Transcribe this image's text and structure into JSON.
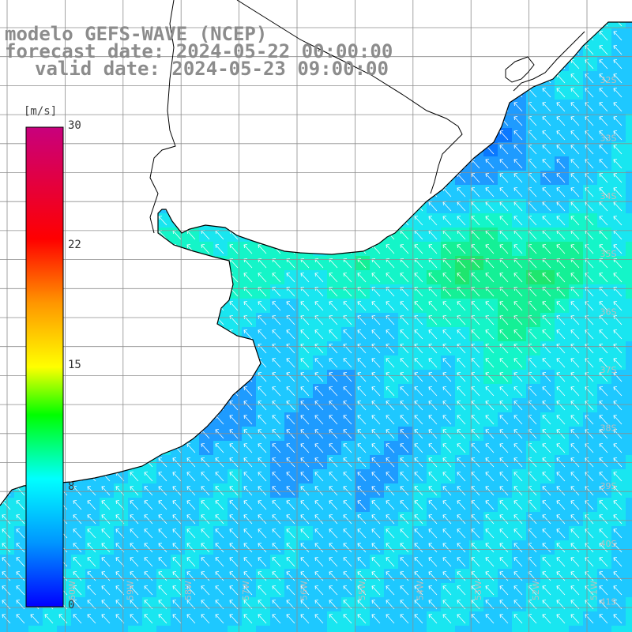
{
  "title": {
    "line1": "modelo GEFS-WAVE (NCEP)",
    "line2": "forecast date: 2024-05-22 00:00:00",
    "line3": "valid date: 2024-05-23 09:00:00"
  },
  "colorbar": {
    "units": "[m/s]",
    "ticks": [
      {
        "value": 30,
        "label": "30"
      },
      {
        "value": 22,
        "label": "22"
      },
      {
        "value": 15,
        "label": "15"
      },
      {
        "value": 8,
        "label": "8"
      },
      {
        "value": 0,
        "label": "0"
      }
    ],
    "stops": [
      {
        "value": 0,
        "color": "#0000ff"
      },
      {
        "value": 4,
        "color": "#0096ff"
      },
      {
        "value": 8,
        "color": "#00ffff"
      },
      {
        "value": 12,
        "color": "#00ff00"
      },
      {
        "value": 15,
        "color": "#ffff00"
      },
      {
        "value": 19,
        "color": "#ff9600"
      },
      {
        "value": 23,
        "color": "#ff0000"
      },
      {
        "value": 30,
        "color": "#c8007d"
      }
    ]
  },
  "map": {
    "lon_labels": [
      "60W",
      "59W",
      "58W",
      "57W",
      "56W",
      "55W",
      "54W",
      "53W",
      "52W",
      "51W"
    ],
    "lat_labels": [
      "32S",
      "33S",
      "34S",
      "35S",
      "36S",
      "37S",
      "38S",
      "39S",
      "40S",
      "41S"
    ],
    "wind_direction": "from south-east",
    "colors": {
      "land": "#ffffff",
      "coastline": "#000000",
      "grid": "#888888",
      "arrows": "#ffffff"
    }
  }
}
